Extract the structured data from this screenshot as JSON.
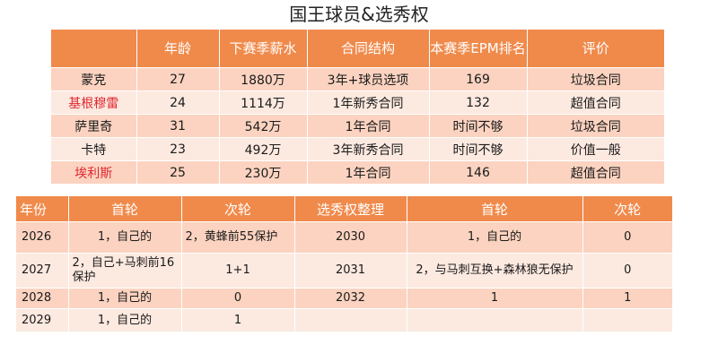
{
  "title": "国王球员&选秀权",
  "players_table": {
    "headers": [
      "",
      "年龄",
      "下赛季薪水",
      "合同结构",
      "本赛季EPM排名",
      "评价"
    ],
    "rows": [
      {
        "name": "蒙克",
        "age": "27",
        "salary": "1880万",
        "contract": "3年+球员选项",
        "epm": "169",
        "rating": "垃圾合同",
        "highlight": false
      },
      {
        "name": "基根穆雷",
        "age": "24",
        "salary": "1114万",
        "contract": "1年新秀合同",
        "epm": "132",
        "rating": "超值合同",
        "highlight": true
      },
      {
        "name": "萨里奇",
        "age": "31",
        "salary": "542万",
        "contract": "1年合同",
        "epm": "时间不够",
        "rating": "垃圾合同",
        "highlight": false
      },
      {
        "name": "卡特",
        "age": "23",
        "salary": "492万",
        "contract": "3年新秀合同",
        "epm": "时间不够",
        "rating": "价值一般",
        "highlight": false
      },
      {
        "name": "埃利斯",
        "age": "25",
        "salary": "230万",
        "contract": "1年合同",
        "epm": "146",
        "rating": "超值合同",
        "highlight": true
      }
    ]
  },
  "picks_table": {
    "headers": [
      "年份",
      "首轮",
      "次轮",
      "选秀权整理",
      "首轮",
      "次轮"
    ],
    "rows": [
      {
        "year": "2026",
        "first": "1，自己的",
        "second": "2，黄蜂前55保护",
        "year2": "2030",
        "first2": "1，自己的",
        "second2": "0"
      },
      {
        "year": "2027",
        "first": "2，自己+马刺前16保护",
        "second": "1+1",
        "year2": "2031",
        "first2": "2，与马刺互换+森林狼无保护",
        "second2": "0"
      },
      {
        "year": "2028",
        "first": "1，自己的",
        "second": "0",
        "year2": "2032",
        "first2": "1",
        "second2": "1"
      },
      {
        "year": "2029",
        "first": "1，自己的",
        "second": "1",
        "year2": "",
        "first2": "",
        "second2": ""
      }
    ]
  }
}
